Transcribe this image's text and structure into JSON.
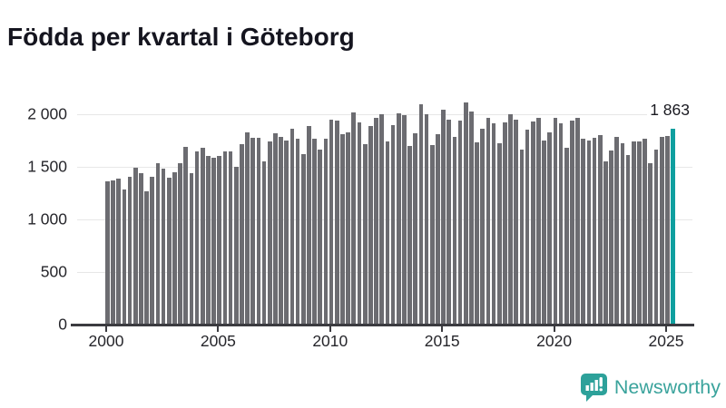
{
  "title": "Födda per kvartal i Göteborg",
  "annotation": {
    "latest_value_label": "1 863"
  },
  "footer": {
    "brand": "Newsworthy"
  },
  "colors": {
    "bar": "#6c6c71",
    "highlight": "#0f9f9f",
    "logo_teal": "#2da19a",
    "brand_text": "#3aa39c"
  },
  "chart_data": {
    "type": "bar",
    "title": "Födda per kvartal i Göteborg",
    "xlabel": "",
    "ylabel": "",
    "ylim": [
      0,
      2140
    ],
    "grid": true,
    "legend": false,
    "y_ticks": {
      "values": [
        0,
        500,
        1000,
        1500,
        2000
      ],
      "labels": [
        "0",
        "500",
        "1 000",
        "1 500",
        "2 000"
      ]
    },
    "x_tick_labels": [
      "2000",
      "2005",
      "2010",
      "2015",
      "2020",
      "2025"
    ],
    "highlight_index": 101,
    "highlight_label": "1 863",
    "categories": [
      "2000K1",
      "2000K2",
      "2000K3",
      "2000K4",
      "2001K1",
      "2001K2",
      "2001K3",
      "2001K4",
      "2002K1",
      "2002K2",
      "2002K3",
      "2002K4",
      "2003K1",
      "2003K2",
      "2003K3",
      "2003K4",
      "2004K1",
      "2004K2",
      "2004K3",
      "2004K4",
      "2005K1",
      "2005K2",
      "2005K3",
      "2005K4",
      "2006K1",
      "2006K2",
      "2006K3",
      "2006K4",
      "2007K1",
      "2007K2",
      "2007K3",
      "2007K4",
      "2008K1",
      "2008K2",
      "2008K3",
      "2008K4",
      "2009K1",
      "2009K2",
      "2009K3",
      "2009K4",
      "2010K1",
      "2010K2",
      "2010K3",
      "2010K4",
      "2011K1",
      "2011K2",
      "2011K3",
      "2011K4",
      "2012K1",
      "2012K2",
      "2012K3",
      "2012K4",
      "2013K1",
      "2013K2",
      "2013K3",
      "2013K4",
      "2014K1",
      "2014K2",
      "2014K3",
      "2014K4",
      "2015K1",
      "2015K2",
      "2015K3",
      "2015K4",
      "2016K1",
      "2016K2",
      "2016K3",
      "2016K4",
      "2017K1",
      "2017K2",
      "2017K3",
      "2017K4",
      "2018K1",
      "2018K2",
      "2018K3",
      "2018K4",
      "2019K1",
      "2019K2",
      "2019K3",
      "2019K4",
      "2020K1",
      "2020K2",
      "2020K3",
      "2020K4",
      "2021K1",
      "2021K2",
      "2021K3",
      "2021K4",
      "2022K1",
      "2022K2",
      "2022K3",
      "2022K4",
      "2023K1",
      "2023K2",
      "2023K3",
      "2023K4",
      "2024K1",
      "2024K2",
      "2024K3",
      "2024K4",
      "2025K1",
      "2025K2"
    ],
    "values": [
      1365,
      1373,
      1390,
      1287,
      1402,
      1494,
      1436,
      1270,
      1402,
      1531,
      1485,
      1399,
      1451,
      1534,
      1686,
      1442,
      1646,
      1681,
      1606,
      1589,
      1606,
      1645,
      1645,
      1502,
      1715,
      1827,
      1780,
      1780,
      1550,
      1738,
      1822,
      1787,
      1750,
      1858,
      1770,
      1622,
      1887,
      1770,
      1664,
      1764,
      1951,
      1937,
      1810,
      1830,
      2020,
      1925,
      1715,
      1888,
      1965,
      2003,
      1745,
      1900,
      2012,
      1990,
      1695,
      1820,
      2093,
      2003,
      1710,
      1810,
      2040,
      1950,
      1781,
      1940,
      2112,
      2028,
      1732,
      1862,
      1963,
      1917,
      1724,
      1925,
      2003,
      1945,
      1665,
      1852,
      1934,
      1968,
      1752,
      1824,
      1963,
      1911,
      1685,
      1940,
      1963,
      1767,
      1752,
      1773,
      1800,
      1551,
      1657,
      1781,
      1724,
      1609,
      1745,
      1738,
      1767,
      1537,
      1665,
      1781,
      1797,
      1863
    ]
  }
}
